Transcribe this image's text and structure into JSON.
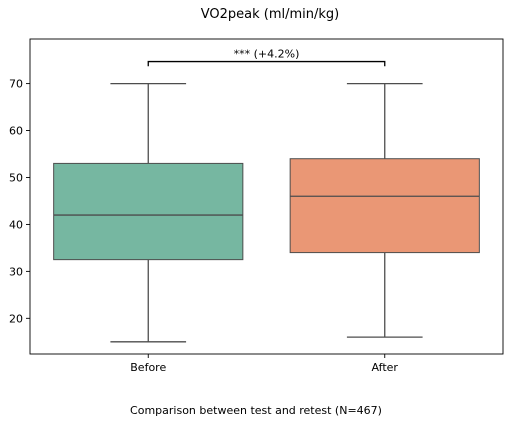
{
  "chart_data": {
    "type": "box",
    "title": "VO2peak (ml/min/kg)",
    "caption": "Comparison between test and retest (N=467)",
    "categories": [
      "Before",
      "After"
    ],
    "boxes": [
      {
        "category": "Before",
        "whisker_low": 15,
        "q1": 32.5,
        "median": 42,
        "q3": 53,
        "whisker_high": 70,
        "color": "#76b7a1"
      },
      {
        "category": "After",
        "whisker_low": 16,
        "q1": 34,
        "median": 46,
        "q3": 54,
        "whisker_high": 70,
        "color": "#ea9775"
      }
    ],
    "annotation": {
      "text": "*** (+4.2%)",
      "between": [
        "Before",
        "After"
      ]
    },
    "y_ticks": [
      20,
      30,
      40,
      50,
      60,
      70
    ],
    "ylim": [
      12.4,
      79.5
    ],
    "grid": false
  }
}
